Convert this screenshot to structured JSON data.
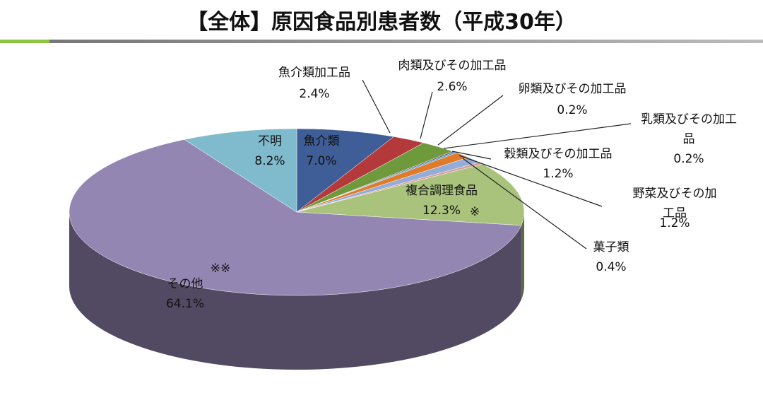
{
  "chart_data": {
    "type": "pie",
    "title": "【全体】原因食品別患者数（平成30年）",
    "categories": [
      "魚介類",
      "魚介類加工品",
      "肉類及びその加工品",
      "卵類及びその加工品",
      "乳類及びその加工品",
      "穀類及びその加工品",
      "野菜及びその加工品",
      "菓子類",
      "複合調理食品",
      "その他",
      "不明"
    ],
    "values": [
      7.0,
      2.4,
      2.6,
      0.2,
      0.2,
      1.2,
      1.2,
      0.4,
      12.3,
      64.1,
      8.2
    ],
    "value_labels": [
      "7.0%",
      "2.4%",
      "2.6%",
      "0.2%",
      "0.2%",
      "1.2%",
      "1.2%",
      "0.4%",
      "12.3%",
      "64.1%",
      "8.2%"
    ],
    "colors": [
      "#3f5e98",
      "#b3393a",
      "#6f9a3c",
      "#6a528c",
      "#3ea3bd",
      "#e07b2c",
      "#93acd8",
      "#d99c9b",
      "#a9c37c",
      "#9486b2",
      "#7fbacd"
    ],
    "annotations": [
      {
        "text": "※"
      },
      {
        "text": "※※"
      }
    ]
  }
}
